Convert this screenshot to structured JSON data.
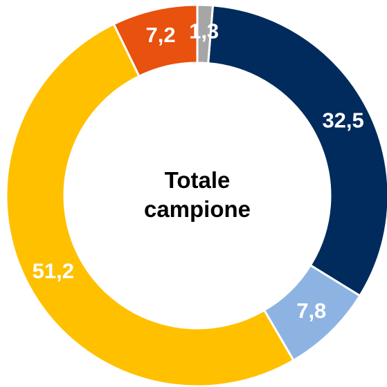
{
  "chart_data": {
    "type": "donut",
    "title": "Totale campione",
    "values": [
      32.5,
      7.8,
      51.2,
      7.2,
      1.3
    ],
    "value_labels": [
      "32,5",
      "7,8",
      "51,2",
      "7,2",
      "1,3"
    ],
    "colors": [
      "#002b5c",
      "#8db3e2",
      "#ffc000",
      "#e8510e",
      "#a6a6a6"
    ]
  }
}
